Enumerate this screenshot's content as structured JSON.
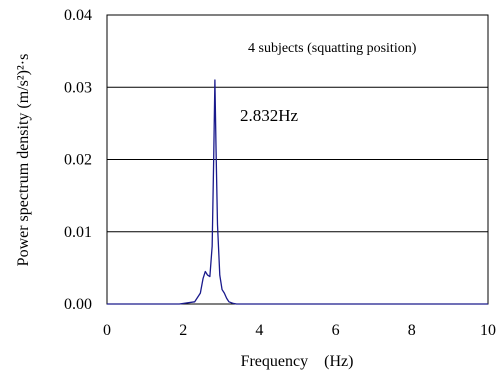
{
  "chart_data": {
    "type": "line",
    "xlabel": "Frequency    (Hz)",
    "ylabel": "Power spectrum density  (m/s²)²·s",
    "xlim": [
      0,
      10
    ],
    "ylim": [
      0,
      0.04
    ],
    "x_ticks": [
      "0",
      "2",
      "4",
      "6",
      "8",
      "10"
    ],
    "y_ticks": [
      "0.00",
      "0.01",
      "0.02",
      "0.03",
      "0.04"
    ],
    "x_tick_values": [
      0,
      2,
      4,
      6,
      8,
      10
    ],
    "y_tick_values": [
      0,
      0.01,
      0.02,
      0.03,
      0.04
    ],
    "grid": "horizontal",
    "line_color": "#1a1a8c",
    "annotations": {
      "legend_text": "4 subjects (squatting position)",
      "peak_label": "2.832Hz"
    },
    "series": [
      {
        "x": [
          0.0,
          1.9,
          2.3,
          2.45,
          2.52,
          2.58,
          2.64,
          2.7,
          2.76,
          2.8,
          2.832,
          2.86,
          2.9,
          2.96,
          3.02,
          3.08,
          3.14,
          3.2,
          3.3,
          3.4,
          4.0,
          10.0
        ],
        "y": [
          0.0,
          0.0,
          0.0003,
          0.0015,
          0.0035,
          0.0045,
          0.004,
          0.0038,
          0.008,
          0.02,
          0.031,
          0.022,
          0.011,
          0.004,
          0.002,
          0.0015,
          0.0008,
          0.0003,
          0.0001,
          0.0,
          0.0,
          0.0
        ]
      }
    ]
  }
}
